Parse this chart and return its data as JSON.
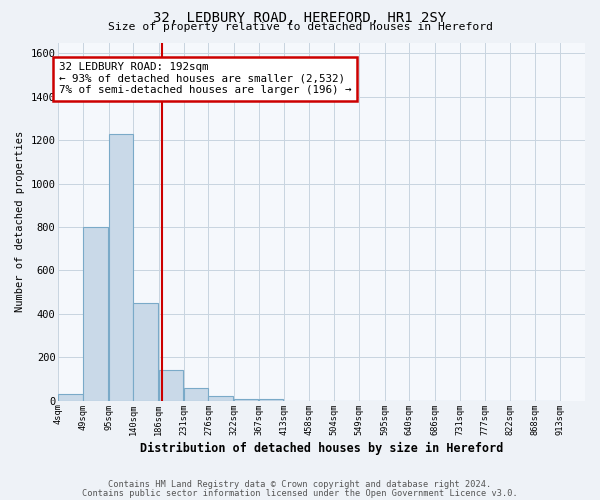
{
  "title1": "32, LEDBURY ROAD, HEREFORD, HR1 2SY",
  "title2": "Size of property relative to detached houses in Hereford",
  "xlabel": "Distribution of detached houses by size in Hereford",
  "ylabel": "Number of detached properties",
  "bin_edges": [
    4,
    49,
    95,
    140,
    186,
    231,
    276,
    322,
    367,
    413,
    458,
    504,
    549,
    595,
    640,
    686,
    731,
    777,
    822,
    868,
    913
  ],
  "bar_heights": [
    30,
    800,
    1230,
    450,
    140,
    60,
    20,
    10,
    10,
    0,
    0,
    0,
    0,
    0,
    0,
    0,
    0,
    0,
    0,
    0
  ],
  "bar_color": "#c9d9e8",
  "bar_edge_color": "#7aaac8",
  "red_line_x": 192,
  "annotation_line1": "32 LEDBURY ROAD: 192sqm",
  "annotation_line2": "← 93% of detached houses are smaller (2,532)",
  "annotation_line3": "7% of semi-detached houses are larger (196) →",
  "annotation_box_color": "white",
  "annotation_edge_color": "#cc0000",
  "ylim": [
    0,
    1650
  ],
  "yticks": [
    0,
    200,
    400,
    600,
    800,
    1000,
    1200,
    1400,
    1600
  ],
  "footer1": "Contains HM Land Registry data © Crown copyright and database right 2024.",
  "footer2": "Contains public sector information licensed under the Open Government Licence v3.0.",
  "bg_color": "#eef2f7",
  "plot_bg_color": "#f5f8fc",
  "grid_color": "#c8d4e0"
}
